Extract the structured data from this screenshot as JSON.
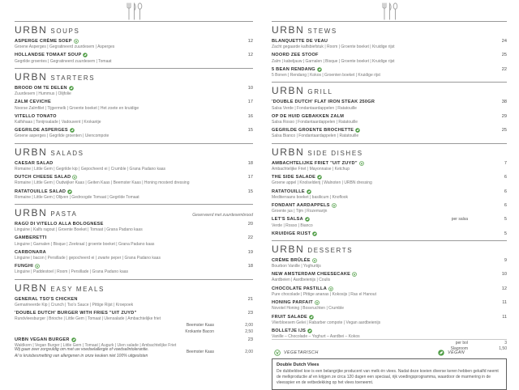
{
  "brand": "URBN",
  "colors": {
    "accent_green": "#4f9d45",
    "heading_gray": "#4b4b4b"
  },
  "legend": {
    "vegetarian": "VEGETARISCH",
    "vegan": "VEGAN"
  },
  "footer": {
    "line1": "Wij gaan zeer zorgvuldig om met uw voedselallergie of voedselintolerantie.",
    "line2": "Al is kruisbesmetting van allergenen in onze keuken niet 100% uitgesloten"
  },
  "info_box": {
    "title": "Double Dutch Vlees",
    "body": "De dubbeldoel koe is een belangrijke producent van melk én vlees. Nadat deze koeien diverse keren hebben gekalfd neemt de melkproductie af en krijgen ze circa 120 dagen een speciaal, rijk voedingsprogramma, waardoor de marmering in de vleesspier en de vetbedekking op het vlees toeneemt."
  },
  "columns": [
    {
      "id": "col-left",
      "sections": [
        {
          "name": "SOUPS",
          "items": [
            {
              "name": "ASPERGE CRÈME SOEP",
              "icon": "veg",
              "desc": "Groene Asperges | Gegratineerd zuurdesem | Asperges",
              "price": "12"
            },
            {
              "name": "HOLLANDSE TOMAAT SOUP",
              "icon": "vegan",
              "desc": "Gegrilde groentes | Gegratineerd zuurdesem | Tomaat",
              "price": "12"
            }
          ]
        },
        {
          "name": "STARTERS",
          "items": [
            {
              "name": "BROOD OM TE DELEN",
              "icon": "vegan",
              "desc": "Zuurdesem | Hummus | Olijfolie",
              "price": "10"
            },
            {
              "name": "ZALM CEVICHE",
              "desc": "Noorse Zalmfilet | Tijgermelk | Groente boeket | Het zoete en kruidige",
              "price": "17"
            },
            {
              "name": "VITELLO TONATO",
              "desc": "Kalfshaas | Tonijnsalade | Vadouvent | Krokantje",
              "price": "16"
            },
            {
              "name": "GEGRILDE ASPERGES",
              "icon": "vegan",
              "desc": "Groene asperges | Gegrilde groenten | Uiencompote",
              "price": "15"
            }
          ]
        },
        {
          "name": "SALADS",
          "items": [
            {
              "name": "CAESAR SALAD",
              "desc": "Romaine | Little Gem | Gegrilde kip | Gepocheerd ei | Crumble | Grana Padano kaas",
              "price": "18"
            },
            {
              "name": "DUTCH CHEESE SALAD",
              "icon": "veg",
              "desc": "Romaine | Little Gem | Oudwijker Kaas | Geiten Kaas | Beemster Kaas | Honing mosterd dressing",
              "price": "17"
            },
            {
              "name": "RATATOUILLE SALAD",
              "icon": "vegan",
              "desc": "Romaine | Little Gem | Olijven | Gedroogde Tomaat | Gegrilde Tomaat",
              "price": "15"
            }
          ]
        },
        {
          "name": "PASTA",
          "note": "Geserveerd met zuurdesembrood",
          "items": [
            {
              "name": "RAGÙ DI VITELLO ALLA BOLOGNESE",
              "desc": "Linguine | Kalfs ragout | Groente Boeket | Tomaat | Grana Padano kaas",
              "price": "20"
            },
            {
              "name": "GAMBERETTI",
              "desc": "Linguine | Garnalen | Bisque | Zeekraal | groente boeket | Grana Padano kaas",
              "price": "22"
            },
            {
              "name": "CARBONARA",
              "desc": "Linguine | bacon | Persillade | gepocheerd ei | zwarte peper | Grana Padano kaas",
              "price": "19"
            },
            {
              "name": "FUNGHI",
              "icon": "veg",
              "desc": "Linguine | Paddestoel | Room | Persillade | Grana Padano kaas",
              "price": "18"
            }
          ]
        },
        {
          "name": "EASY MEALS",
          "items": [
            {
              "name": "GENERAL TSO'S CHICKEN",
              "desc": "Gemarineerde Kip | Crunch | Tso's Sauce | Pittige Rijst | Kroepoek",
              "price": "21"
            },
            {
              "name": "'DOUBLE DUTCH' BURGER WITH FRIES \"UIT ZUYD\"",
              "desc": "Rundvleesburger | Brioche | Little Gem | Tomaat | Uiensalade | Ambachtelijke friet",
              "price": "23",
              "extras": [
                {
                  "label": "Beemster Kaas",
                  "price": "2,00"
                },
                {
                  "label": "Krokante Bacon",
                  "price": "2,50"
                }
              ]
            },
            {
              "name": "URBN VEGAN BURGER",
              "icon": "vegan",
              "desc": "Waldkorn | Vegan Burger | Little Gem | Tomaat | Augurk | Uien salade | Ambachtelijke Friet",
              "price": "23",
              "extras": [
                {
                  "label": "Beemster Kaas",
                  "price": "2,00"
                }
              ]
            }
          ]
        }
      ]
    },
    {
      "id": "col-right",
      "sections": [
        {
          "name": "STEWS",
          "items": [
            {
              "name": "BLANQUETTE DE VEAU",
              "desc": "Zacht gegaarde kalfsbiefstuk | Room | Groente boeket | Kruidige rijst",
              "price": "24"
            },
            {
              "name": "NOORD ZEE STOOF",
              "desc": "Zalm | kabeljauw | Garnalen | Bisque | Groente boeket | Kruidige rijst",
              "price": "25"
            },
            {
              "name": "5 BEAN RENDANG",
              "icon": "vegan",
              "desc": "5 Bonen | Rendang | Kokos | Groenten boeket | Kruidige rijst",
              "price": "22"
            }
          ]
        },
        {
          "name": "GRILL",
          "items": [
            {
              "name": "'DOUBLE DUTCH' FLAT IRON STEAK 250GR",
              "desc": "Salsa Verde | Fondantaardappelen | Ratatouille",
              "price": "38"
            },
            {
              "name": "OP DE HUID GEBAKKEN ZALM",
              "desc": "Salsa Rosso | Fondantaardappelen | Ratatouille",
              "price": "29"
            },
            {
              "name": "GEGRILDE GROENTE BROCHETTE",
              "icon": "vegan",
              "desc": "Salsa Bianco | Fondantaardappelen | Ratatouille",
              "price": "25"
            }
          ]
        },
        {
          "name": "SIDE DISHES",
          "items": [
            {
              "name": "AMBACHTELIJKE FRIET \"UIT ZUYD\"",
              "icon": "veg",
              "desc": "Ambachtelijke Friet | Mayonnaise | Ketchup",
              "price": "7"
            },
            {
              "name": "THE SIDE SALADE",
              "icon": "vegan",
              "desc": "Groene appel | Knolselderij | Walnoten | URBN dressing",
              "price": "6"
            },
            {
              "name": "RATATOUILLE",
              "icon": "vegan",
              "desc": "Mediterraans boeket | basilicum | Knoflook",
              "price": "6"
            },
            {
              "name": "FONDANT AARDAPPELS",
              "icon": "veg",
              "desc": "Groente jus | Tijm | Rozemarijn",
              "price": "6"
            },
            {
              "name": "LET'S SALSA",
              "icon": "vegan",
              "mid": "per salsa",
              "desc": "Verde | Rosso | Bianco",
              "price": "5"
            },
            {
              "name": "KRUIDIGE RIJST",
              "icon": "vegan",
              "price": "5"
            }
          ]
        },
        {
          "name": "DESSERTS",
          "items": [
            {
              "name": "CRÈME BRÛLÉE",
              "icon": "veg",
              "desc": "Bourbon Vanille | Yoghurtijs",
              "price": "9"
            },
            {
              "name": "NEW AMSTERDAM CHEESECAKE",
              "icon": "veg",
              "desc": "Aardbeien | Aardbeienijs | Coulis",
              "price": "10"
            },
            {
              "name": "CHOCOLATE PASTILLA",
              "icon": "veg",
              "desc": "Pure chocolade | Pittige ananas | Kokosijs | Ras el Hanout",
              "price": "12"
            },
            {
              "name": "HONING PARFAIT",
              "icon": "veg",
              "desc": "Novotel Honing | Bosvruchten | Crumble",
              "price": "11"
            },
            {
              "name": "FRUIT SALADE",
              "icon": "vegan",
              "desc": "Vlierbloesem Gelei | Rabarber compote | Vegan aardbeienijs",
              "price": "11"
            },
            {
              "name": "BOLLETJE IJS",
              "icon": "vegan",
              "desc": "Vanille – Chocolade – Yoghurt – Aardbei – Kokos",
              "extras": [
                {
                  "label": "per bol",
                  "price": "3"
                },
                {
                  "label": "Slagroom",
                  "price": "1,50"
                }
              ]
            }
          ]
        }
      ]
    }
  ]
}
